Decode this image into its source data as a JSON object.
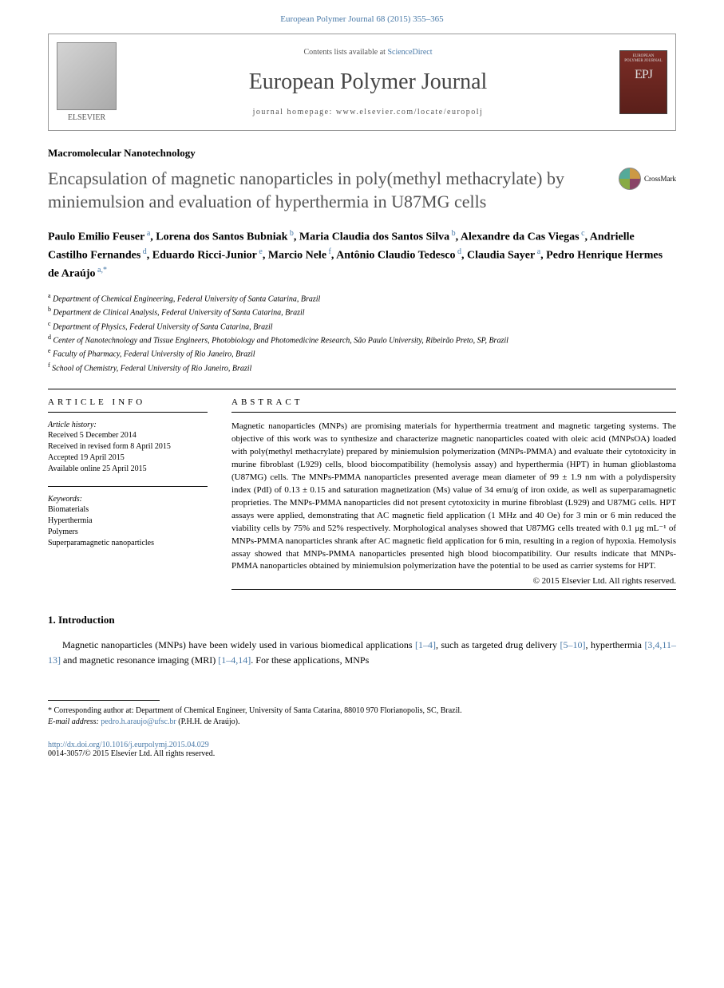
{
  "header_citation": "European Polymer Journal 68 (2015) 355–365",
  "banner": {
    "publisher": "ELSEVIER",
    "contents_text": "Contents lists available at ",
    "contents_link": "ScienceDirect",
    "journal_name": "European Polymer Journal",
    "homepage_label": "journal homepage: www.elsevier.com/locate/europolj",
    "cover_text": "EUROPEAN POLYMER JOURNAL"
  },
  "section_tag": "Macromolecular Nanotechnology",
  "title": "Encapsulation of magnetic nanoparticles in poly(methyl methacrylate) by miniemulsion and evaluation of hyperthermia in U87MG cells",
  "crossmark": "CrossMark",
  "authors": [
    {
      "name": "Paulo Emilio Feuser",
      "aff": "a"
    },
    {
      "name": "Lorena dos Santos Bubniak",
      "aff": "b"
    },
    {
      "name": "Maria Claudia dos Santos Silva",
      "aff": "b"
    },
    {
      "name": "Alexandre da Cas Viegas",
      "aff": "c"
    },
    {
      "name": "Andrielle Castilho Fernandes",
      "aff": "d"
    },
    {
      "name": "Eduardo Ricci-Junior",
      "aff": "e"
    },
    {
      "name": "Marcio Nele",
      "aff": "f"
    },
    {
      "name": "Antônio Claudio Tedesco",
      "aff": "d"
    },
    {
      "name": "Claudia Sayer",
      "aff": "a"
    },
    {
      "name": "Pedro Henrique Hermes de Araújo",
      "aff": "a,*"
    }
  ],
  "affiliations": [
    {
      "sup": "a",
      "text": "Department of Chemical Engineering, Federal University of Santa Catarina, Brazil"
    },
    {
      "sup": "b",
      "text": "Department de Clinical Analysis, Federal University of Santa Catarina, Brazil"
    },
    {
      "sup": "c",
      "text": "Department of Physics, Federal University of Santa Catarina, Brazil"
    },
    {
      "sup": "d",
      "text": "Center of Nanotechnology and Tissue Engineers, Photobiology and Photomedicine Research, São Paulo University, Ribeirão Preto, SP, Brazil"
    },
    {
      "sup": "e",
      "text": "Faculty of Pharmacy, Federal University of Rio Janeiro, Brazil"
    },
    {
      "sup": "f",
      "text": "School of Chemistry, Federal University of Rio Janeiro, Brazil"
    }
  ],
  "article_info": {
    "heading": "ARTICLE INFO",
    "history_label": "Article history:",
    "received": "Received 5 December 2014",
    "revised": "Received in revised form 8 April 2015",
    "accepted": "Accepted 19 April 2015",
    "online": "Available online 25 April 2015",
    "keywords_label": "Keywords:",
    "keywords": [
      "Biomaterials",
      "Hyperthermia",
      "Polymers",
      "Superparamagnetic nanoparticles"
    ]
  },
  "abstract": {
    "heading": "ABSTRACT",
    "text": "Magnetic nanoparticles (MNPs) are promising materials for hyperthermia treatment and magnetic targeting systems. The objective of this work was to synthesize and characterize magnetic nanoparticles coated with oleic acid (MNPsOA) loaded with poly(methyl methacrylate) prepared by miniemulsion polymerization (MNPs-PMMA) and evaluate their cytotoxicity in murine fibroblast (L929) cells, blood biocompatibility (hemolysis assay) and hyperthermia (HPT) in human glioblastoma (U87MG) cells. The MNPs-PMMA nanoparticles presented average mean diameter of 99 ± 1.9 nm with a polydispersity index (PdI) of 0.13 ± 0.15 and saturation magnetization (Ms) value of 34 emu/g of iron oxide, as well as superparamagnetic proprieties. The MNPs-PMMA nanoparticles did not present cytotoxicity in murine fibroblast (L929) and U87MG cells. HPT assays were applied, demonstrating that AC magnetic field application (1 MHz and 40 Oe) for 3 min or 6 min reduced the viability cells by 75% and 52% respectively. Morphological analyses showed that U87MG cells treated with 0.1 μg mL⁻¹ of MNPs-PMMA nanoparticles shrank after AC magnetic field application for 6 min, resulting in a region of hypoxia. Hemolysis assay showed that MNPs-PMMA nanoparticles presented high blood biocompatibility. Our results indicate that MNPs-PMMA nanoparticles obtained by miniemulsion polymerization have the potential to be used as carrier systems for HPT.",
    "copyright": "© 2015 Elsevier Ltd. All rights reserved."
  },
  "intro": {
    "heading": "1. Introduction",
    "body_pre": "Magnetic nanoparticles (MNPs) have been widely used in various biomedical applications ",
    "ref1": "[1–4]",
    "body_mid1": ", such as targeted drug delivery ",
    "ref2": "[5–10]",
    "body_mid2": ", hyperthermia ",
    "ref3": "[3,4,11–13]",
    "body_mid3": " and magnetic resonance imaging (MRI) ",
    "ref4": "[1–4,14]",
    "body_post": ". For these applications, MNPs"
  },
  "footnote": {
    "corr_label": "* Corresponding author at: Department of Chemical Engineer, University of Santa Catarina, 88010 970 Florianopolis, SC, Brazil.",
    "email_label": "E-mail address: ",
    "email": "pedro.h.araujo@ufsc.br",
    "email_author": " (P.H.H. de Araújo)."
  },
  "doi": "http://dx.doi.org/10.1016/j.eurpolymj.2015.04.029",
  "issn": "0014-3057/© 2015 Elsevier Ltd. All rights reserved."
}
